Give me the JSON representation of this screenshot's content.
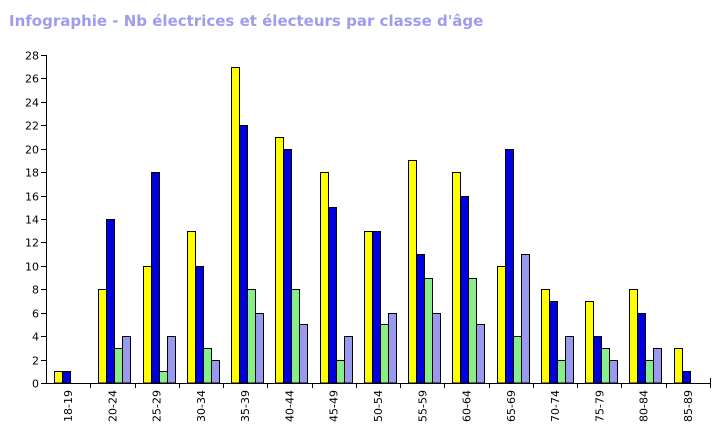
{
  "chart_data": {
    "type": "bar",
    "title": "Infographie - Nb électrices et électeurs par classe d'âge",
    "xlabel": "",
    "ylabel": "",
    "ylim": [
      0,
      28
    ],
    "yticks": [
      0,
      2,
      4,
      6,
      8,
      10,
      12,
      14,
      16,
      18,
      20,
      22,
      24,
      26,
      28
    ],
    "grid": false,
    "categories": [
      "18-19",
      "20-24",
      "25-29",
      "30-34",
      "35-39",
      "40-44",
      "45-49",
      "50-54",
      "55-59",
      "60-64",
      "65-69",
      "70-74",
      "75-79",
      "80-84",
      "85-89"
    ],
    "series": [
      {
        "color": "#ffff00",
        "values": [
          1,
          8,
          10,
          13,
          27,
          21,
          18,
          13,
          19,
          18,
          10,
          8,
          7,
          8,
          3
        ]
      },
      {
        "color": "#0000dd",
        "values": [
          1,
          14,
          18,
          10,
          22,
          20,
          15,
          13,
          11,
          16,
          20,
          7,
          4,
          6,
          1
        ]
      },
      {
        "color": "#88ee88",
        "values": [
          0,
          3,
          1,
          3,
          8,
          8,
          2,
          5,
          9,
          9,
          4,
          2,
          3,
          2,
          0
        ]
      },
      {
        "color": "#9999ee",
        "values": [
          0,
          4,
          4,
          2,
          6,
          5,
          4,
          6,
          6,
          5,
          11,
          4,
          2,
          3,
          0
        ]
      }
    ]
  }
}
